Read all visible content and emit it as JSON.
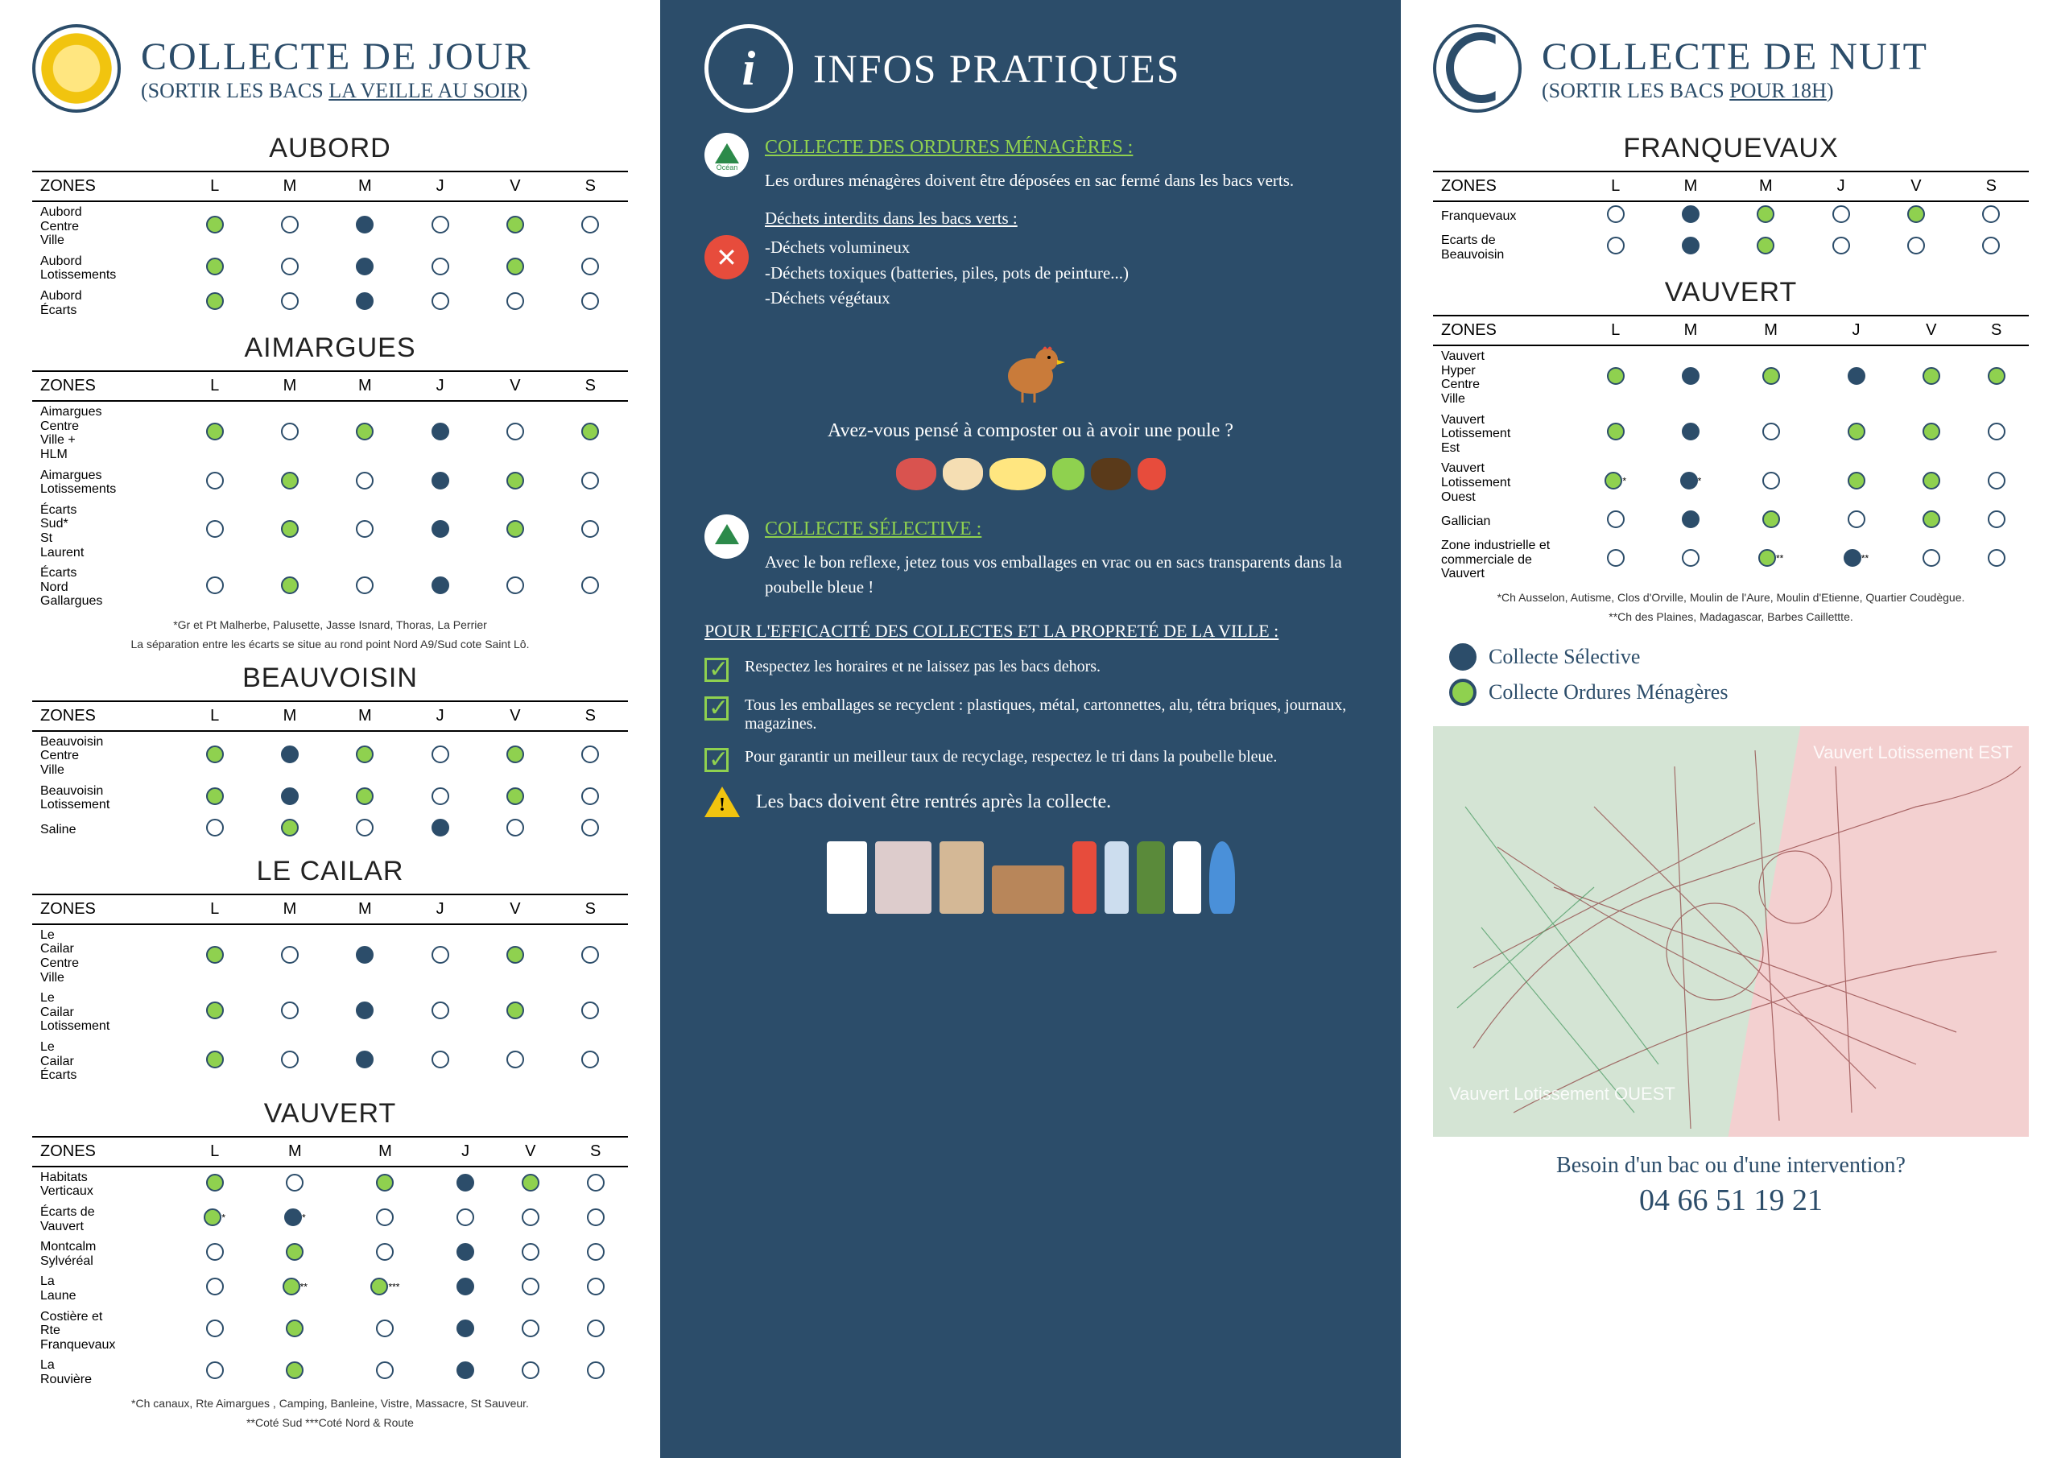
{
  "colors": {
    "navy": "#2c4d6a",
    "green": "#8fd14f",
    "white": "#ffffff"
  },
  "day": {
    "title": "COLLECTE DE JOUR",
    "subtitle_pre": "(SORTIR LES BACS ",
    "subtitle_u": "LA VEILLE AU SOIR",
    "subtitle_post": ")",
    "days": [
      "L",
      "M",
      "M",
      "J",
      "V",
      "S"
    ],
    "sections": [
      {
        "name": "AUBORD",
        "rows": [
          {
            "zone": "Aubord Centre Ville",
            "cells": [
              "g",
              "e",
              "b",
              "e",
              "g",
              "e"
            ]
          },
          {
            "zone": "Aubord Lotissements",
            "cells": [
              "g",
              "e",
              "b",
              "e",
              "g",
              "e"
            ]
          },
          {
            "zone": "Aubord Écarts",
            "cells": [
              "g",
              "e",
              "b",
              "e",
              "e",
              "e"
            ]
          }
        ]
      },
      {
        "name": "AIMARGUES",
        "rows": [
          {
            "zone": "Aimargues Centre Ville + HLM",
            "cells": [
              "g",
              "e",
              "g",
              "b",
              "e",
              "g"
            ]
          },
          {
            "zone": "Aimargues Lotissements",
            "cells": [
              "e",
              "g",
              "e",
              "b",
              "g",
              "e"
            ]
          },
          {
            "zone": "Écarts Sud* St Laurent",
            "cells": [
              "e",
              "g",
              "e",
              "b",
              "g",
              "e"
            ]
          },
          {
            "zone": "Écarts Nord Gallargues",
            "cells": [
              "e",
              "g",
              "e",
              "b",
              "e",
              "e"
            ]
          }
        ],
        "notes": [
          "*Gr et Pt Malherbe, Palusette, Jasse Isnard, Thoras, La Perrier",
          "La séparation entre les écarts se situe au rond point Nord A9/Sud cote Saint Lô."
        ]
      },
      {
        "name": "BEAUVOISIN",
        "rows": [
          {
            "zone": "Beauvoisin Centre Ville",
            "cells": [
              "g",
              "b",
              "g",
              "e",
              "g",
              "e"
            ]
          },
          {
            "zone": "Beauvoisin Lotissement",
            "cells": [
              "g",
              "b",
              "g",
              "e",
              "g",
              "e"
            ]
          },
          {
            "zone": "Saline",
            "cells": [
              "e",
              "g",
              "e",
              "b",
              "e",
              "e"
            ]
          }
        ]
      },
      {
        "name": "LE CAILAR",
        "rows": [
          {
            "zone": "Le Cailar Centre Ville",
            "cells": [
              "g",
              "e",
              "b",
              "e",
              "g",
              "e"
            ]
          },
          {
            "zone": "Le Cailar Lotissement",
            "cells": [
              "g",
              "e",
              "b",
              "e",
              "g",
              "e"
            ]
          },
          {
            "zone": "Le Cailar Écarts",
            "cells": [
              "g",
              "e",
              "b",
              "e",
              "e",
              "e"
            ]
          }
        ]
      },
      {
        "name": "VAUVERT",
        "rows": [
          {
            "zone": "Habitats Verticaux",
            "cells": [
              "g",
              "e",
              "g",
              "b",
              "g",
              "e"
            ]
          },
          {
            "zone": "Écarts de Vauvert",
            "cells": [
              "g*",
              "b*",
              "e",
              "e",
              "e",
              "e"
            ]
          },
          {
            "zone": "Montcalm Sylvéréal",
            "cells": [
              "e",
              "g",
              "e",
              "b",
              "e",
              "e"
            ]
          },
          {
            "zone": "La Laune",
            "cells": [
              "e",
              "g**",
              "g***",
              "b",
              "e",
              "e"
            ]
          },
          {
            "zone": "Costière et Rte Franquevaux",
            "cells": [
              "e",
              "g",
              "e",
              "b",
              "e",
              "e"
            ]
          },
          {
            "zone": "La Rouvière",
            "cells": [
              "e",
              "g",
              "e",
              "b",
              "e",
              "e"
            ]
          }
        ],
        "notes": [
          "*Ch canaux, Rte Aimargues , Camping, Banleine, Vistre, Massacre, St Sauveur.",
          "**Coté Sud    ***Coté Nord & Route"
        ]
      }
    ]
  },
  "info": {
    "title": "INFOS PRATIQUES",
    "ordures_head": "COLLECTE DES ORDURES MÉNAGÈRES :",
    "ordures_text": "Les ordures ménagères doivent être déposées en sac fermé dans les bacs verts.",
    "interdits_head": "Déchets interdits dans les bacs verts :",
    "interdits": [
      "-Déchets volumineux",
      "-Déchets toxiques (batteries, piles, pots de peinture...)",
      "-Déchets végétaux"
    ],
    "compost_q": "Avez-vous pensé à composter ou à avoir une poule ?",
    "selective_head": "COLLECTE SÉLECTIVE :",
    "selective_text": "Avec le bon reflexe, jetez tous vos emballages en vrac ou en sacs transparents dans la poubelle bleue !",
    "tips_head": "POUR L'EFFICACITÉ DES COLLECTES ET LA PROPRETÉ DE LA VILLE :",
    "tips": [
      "Respectez les horaires et ne laissez pas les bacs dehors.",
      "Tous les emballages se recyclent : plastiques, métal, cartonnettes, alu, tétra briques, journaux, magazines.",
      "Pour garantir un meilleur taux de recyclage, respectez le tri dans la poubelle bleue."
    ],
    "warn": "Les bacs doivent être rentrés après la collecte.",
    "ocean_label": "Océan"
  },
  "night": {
    "title": "COLLECTE DE NUIT",
    "subtitle_pre": "(SORTIR LES BACS ",
    "subtitle_u": "POUR 18H",
    "subtitle_post": ")",
    "days": [
      "L",
      "M",
      "M",
      "J",
      "V",
      "S"
    ],
    "sections": [
      {
        "name": "FRANQUEVAUX",
        "rows": [
          {
            "zone": "Franquevaux",
            "cells": [
              "e",
              "b",
              "g",
              "e",
              "g",
              "e"
            ]
          },
          {
            "zone": "Ecarts de Beauvoisin",
            "cells": [
              "e",
              "b",
              "g",
              "e",
              "e",
              "e"
            ]
          }
        ]
      },
      {
        "name": "VAUVERT",
        "rows": [
          {
            "zone": "Vauvert Hyper Centre Ville",
            "cells": [
              "g",
              "b",
              "g",
              "b",
              "g",
              "g"
            ]
          },
          {
            "zone": "Vauvert Lotissement Est",
            "cells": [
              "g",
              "b",
              "e",
              "g",
              "g",
              "e"
            ]
          },
          {
            "zone": "Vauvert Lotissement Ouest",
            "cells": [
              "g*",
              "b*",
              "e",
              "g",
              "g",
              "e"
            ]
          },
          {
            "zone": "Gallician",
            "cells": [
              "e",
              "b",
              "g",
              "e",
              "g",
              "e"
            ]
          },
          {
            "zone": "Zone industrielle et commerciale de Vauvert",
            "cells": [
              "e",
              "e",
              "g**",
              "b**",
              "e",
              "e"
            ]
          }
        ],
        "notes": [
          "*Ch Ausselon, Autisme, Clos d'Orville, Moulin de l'Aure, Moulin d'Etienne, Quartier Coudègue.",
          "**Ch des Plaines, Madagascar, Barbes Caillettte."
        ]
      }
    ],
    "legend": [
      {
        "label": "Collecte Sélective",
        "fill": "#2c4d6a"
      },
      {
        "label": "Collecte Ordures Ménagères",
        "fill": "#8fd14f"
      }
    ],
    "map_labels": {
      "est": "Vauvert Lotissement EST",
      "ouest": "Vauvert Lotissement OUEST"
    },
    "contact_q": "Besoin d'un bac ou d'une intervention?",
    "contact_tel": "04 66 51 19 21"
  },
  "zones_header": "ZONES"
}
